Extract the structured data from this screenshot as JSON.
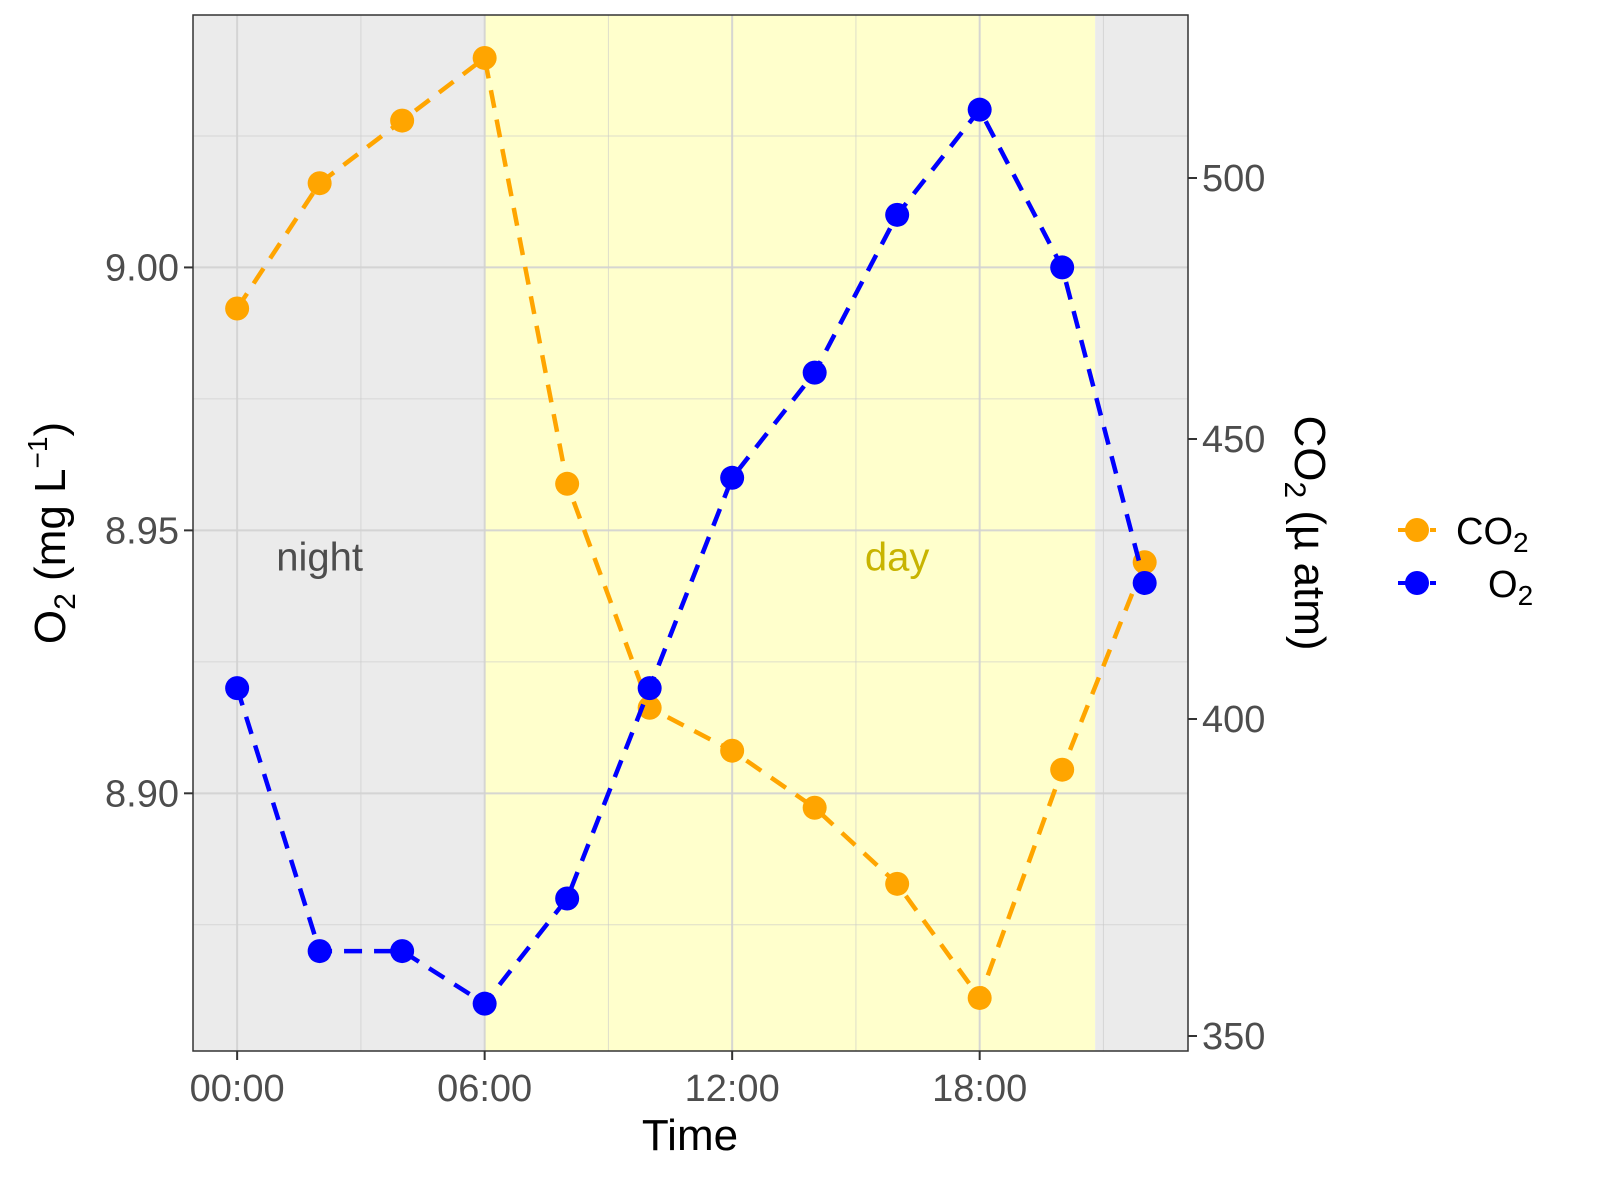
{
  "chart_data": {
    "type": "line",
    "xlabel": "Time",
    "ylabel_left": {
      "main": "O",
      "sub": "2",
      "rest": " (mg L",
      "sup": "−1",
      "end": ")"
    },
    "ylabel_right": {
      "main": "CO",
      "sub": "2",
      "rest": " (µ atm)"
    },
    "x_hours": [
      0,
      2,
      4,
      6,
      8,
      10,
      12,
      14,
      16,
      18,
      20,
      22
    ],
    "x_ticks": [
      {
        "value": 0,
        "label": "00:00"
      },
      {
        "value": 6,
        "label": "06:00"
      },
      {
        "value": 12,
        "label": "12:00"
      },
      {
        "value": 18,
        "label": "18:00"
      }
    ],
    "xlim": [
      -1.07,
      23.05
    ],
    "y_left_ticks": [
      {
        "value": 8.9,
        "label": "8.90"
      },
      {
        "value": 8.95,
        "label": "8.95"
      },
      {
        "value": 9.0,
        "label": "9.00"
      }
    ],
    "ylim_left": [
      8.851,
      9.048
    ],
    "y_right_ticks": [
      {
        "value": 350,
        "label": "350"
      },
      {
        "value": 400,
        "label": "400"
      },
      {
        "value": 450,
        "label": "450"
      },
      {
        "value": 500,
        "label": "500"
      }
    ],
    "y_right_scale": "nonlinear secondary axis",
    "series": [
      {
        "name": "CO2",
        "label_main": "CO",
        "label_sub": "2",
        "axis": "right",
        "color": "#FFA500",
        "values": [
          475,
          499,
          511,
          523,
          442,
          402,
          395,
          386,
          374,
          356,
          392,
          428
        ]
      },
      {
        "name": "O2",
        "label_main": "O",
        "label_sub": "2",
        "axis": "left",
        "color": "#0000FF",
        "values": [
          8.92,
          8.87,
          8.87,
          8.86,
          8.88,
          8.92,
          8.96,
          8.98,
          9.01,
          9.03,
          9.0,
          8.94
        ]
      }
    ],
    "line_style": "dashed",
    "shaded_periods": [
      {
        "label": "night",
        "from": -1.07,
        "to": 6,
        "color": "#EBEBEB",
        "label_color": "#4d4d4d",
        "label_x": 2,
        "label_y": 8.945
      },
      {
        "label": "day",
        "from": 6,
        "to": 20.8,
        "color": "#FFFFCC",
        "label_color": "#C8B400",
        "label_x": 16,
        "label_y": 8.945
      }
    ],
    "grid": true,
    "legend_position": "right"
  }
}
